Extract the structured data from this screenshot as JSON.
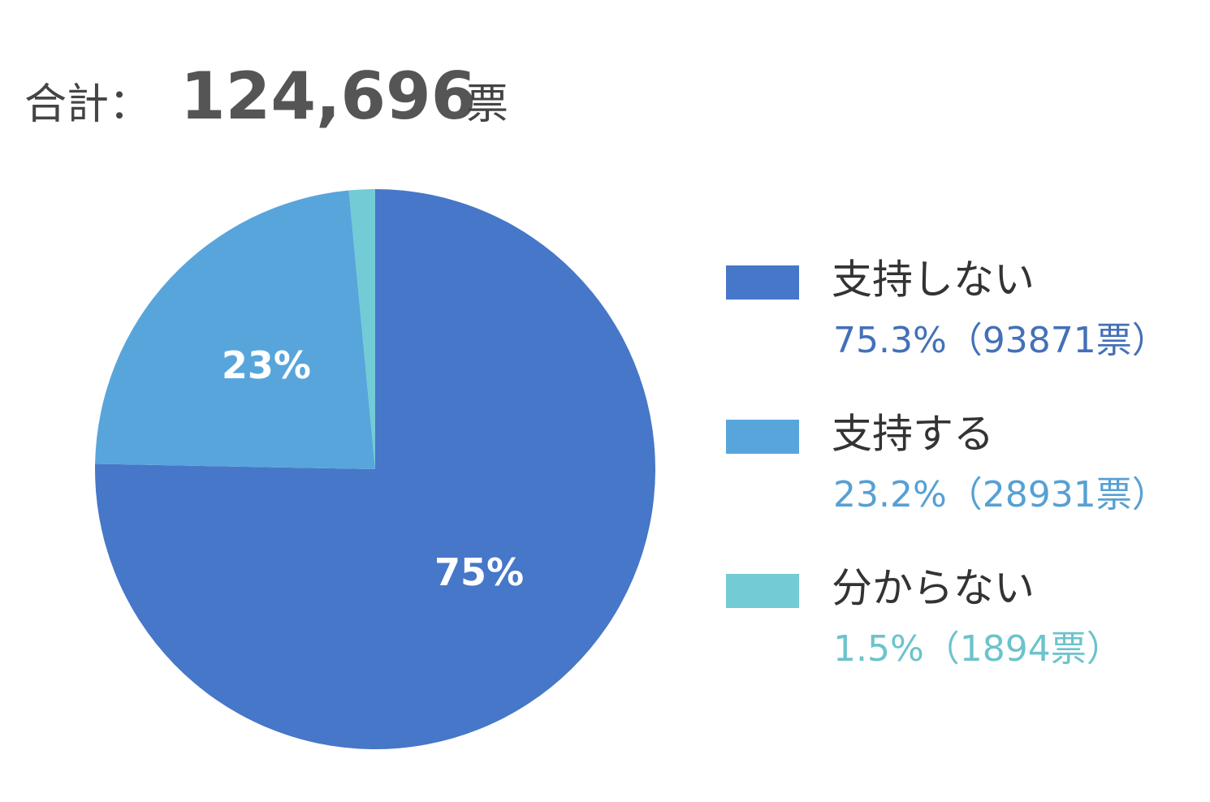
{
  "chart_data": {
    "type": "pie",
    "title_prefix": "合計：",
    "title_total": "124,696",
    "title_unit": "票",
    "categories": [
      "支持しない",
      "支持する",
      "分からない"
    ],
    "values": [
      75.3,
      23.2,
      1.5
    ],
    "value_labels": [
      "75%",
      "23%",
      null
    ],
    "legend_labels": [
      "75.3%（93871票）",
      "23.2%（28931票）",
      "1.5%（1894票）"
    ],
    "colors": [
      "#4677c8",
      "#58a5dc",
      "#72cbd5"
    ],
    "legend_text_colors": [
      "#4470b8",
      "#56a0d4",
      "#6cc3cc"
    ],
    "legend": "right"
  }
}
